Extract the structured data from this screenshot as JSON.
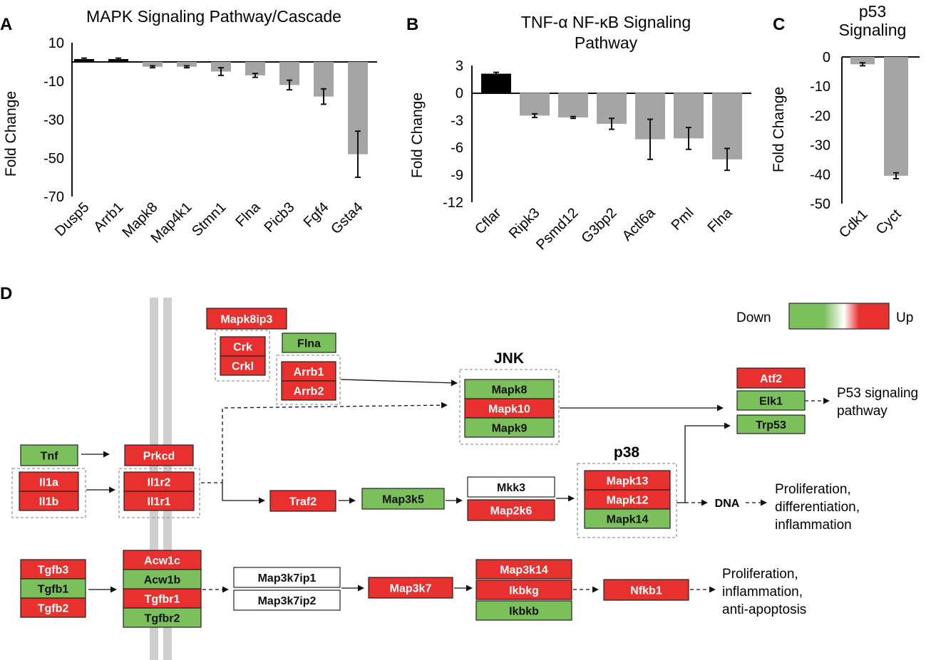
{
  "panels": {
    "a": "A",
    "b": "B",
    "c": "C",
    "d": "D"
  },
  "colors": {
    "up": "#e8302e",
    "down": "#7cc05c",
    "neutral": "#ffffff",
    "bar_gray": "#a5a5a5",
    "bar_black": "#000000",
    "shaded_band": "#cfcfcf"
  },
  "chart_data": [
    {
      "type": "bar",
      "title": "MAPK Signaling Pathway/Cascade",
      "xlabel": "",
      "ylabel": "Fold Change",
      "ylim": [
        -70,
        10
      ],
      "yticks": [
        "10",
        "-10",
        "-30",
        "-50",
        "-70"
      ],
      "categories": [
        "Dusp5",
        "Arrb1",
        "Mapk8",
        "Map4k1",
        "Stmn1",
        "Flna",
        "Picb3",
        "Fgf4",
        "Gsta4"
      ],
      "values": [
        1.5,
        1.5,
        -2.5,
        -2.5,
        -5,
        -7,
        -12,
        -18,
        -48
      ],
      "errors": [
        0.5,
        0.5,
        0.5,
        0.5,
        2,
        1,
        2.5,
        4,
        12
      ],
      "bar_colors": [
        "black",
        "black",
        "gray",
        "gray",
        "gray",
        "gray",
        "gray",
        "gray",
        "gray"
      ]
    },
    {
      "type": "bar",
      "title": "TNF-α NF-κB Signaling Pathway",
      "title_lines": [
        "TNF-α NF-κB Signaling",
        "Pathway"
      ],
      "xlabel": "",
      "ylabel": "Fold Change",
      "ylim": [
        -12,
        3
      ],
      "yticks": [
        "3",
        "0",
        "-3",
        "-6",
        "-9",
        "-12"
      ],
      "categories": [
        "Cflar",
        "Ripk3",
        "Psmd12",
        "G3bp2",
        "Actl6a",
        "Pml",
        "Flna"
      ],
      "values": [
        2.1,
        -2.5,
        -2.7,
        -3.4,
        -5.1,
        -5.0,
        -7.3
      ],
      "errors": [
        0.15,
        0.2,
        0.1,
        0.6,
        2.2,
        1.2,
        1.2
      ],
      "bar_colors": [
        "black",
        "gray",
        "gray",
        "gray",
        "gray",
        "gray",
        "gray"
      ]
    },
    {
      "type": "bar",
      "title": "p53 Signaling",
      "title_lines": [
        "p53",
        "Signaling"
      ],
      "xlabel": "",
      "ylabel": "Fold Change",
      "ylim": [
        -50,
        0
      ],
      "yticks": [
        "0",
        "-10",
        "-20",
        "-30",
        "-40",
        "-50"
      ],
      "categories": [
        "Cdk1",
        "Cyct"
      ],
      "values": [
        -2.5,
        -40.5
      ],
      "errors": [
        0.5,
        1
      ],
      "bar_colors": [
        "gray",
        "gray"
      ]
    }
  ],
  "pathway": {
    "legend": {
      "down": "Down",
      "up": "Up"
    },
    "labels": {
      "jnk": "JNK",
      "p38": "p38",
      "dna": "DNA",
      "p53_1": "P53 signaling",
      "p53_2": "pathway",
      "pro1_1": "Proliferation,",
      "pro1_2": "differentiation,",
      "pro1_3": "inflammation",
      "pro2_1": "Proliferation,",
      "pro2_2": "inflammation,",
      "pro2_3": "anti-apoptosis"
    },
    "genes": [
      {
        "id": "mapk8ip3",
        "label": "Mapk8ip3",
        "status": "up"
      },
      {
        "id": "crk",
        "label": "Crk",
        "status": "up"
      },
      {
        "id": "crkl",
        "label": "Crkl",
        "status": "up"
      },
      {
        "id": "flna",
        "label": "Flna",
        "status": "down"
      },
      {
        "id": "arrb1",
        "label": "Arrb1",
        "status": "up"
      },
      {
        "id": "arrb2",
        "label": "Arrb2",
        "status": "up"
      },
      {
        "id": "mapk8",
        "label": "Mapk8",
        "status": "down"
      },
      {
        "id": "mapk10",
        "label": "Mapk10",
        "status": "up"
      },
      {
        "id": "mapk9",
        "label": "Mapk9",
        "status": "down"
      },
      {
        "id": "atf2",
        "label": "Atf2",
        "status": "up"
      },
      {
        "id": "elk1",
        "label": "Elk1",
        "status": "down"
      },
      {
        "id": "trp53",
        "label": "Trp53",
        "status": "down"
      },
      {
        "id": "tnf",
        "label": "Tnf",
        "status": "down"
      },
      {
        "id": "il1a",
        "label": "Il1a",
        "status": "up"
      },
      {
        "id": "il1b",
        "label": "Il1b",
        "status": "up"
      },
      {
        "id": "prkcd",
        "label": "Prkcd",
        "status": "up"
      },
      {
        "id": "il1r2",
        "label": "Il1r2",
        "status": "up"
      },
      {
        "id": "il1r1",
        "label": "Il1r1",
        "status": "up"
      },
      {
        "id": "traf2",
        "label": "Traf2",
        "status": "up"
      },
      {
        "id": "map3k5",
        "label": "Map3k5",
        "status": "down"
      },
      {
        "id": "mkk3",
        "label": "Mkk3",
        "status": "neutral"
      },
      {
        "id": "map2k6",
        "label": "Map2k6",
        "status": "up"
      },
      {
        "id": "mapk13",
        "label": "Mapk13",
        "status": "up"
      },
      {
        "id": "mapk12",
        "label": "Mapk12",
        "status": "up"
      },
      {
        "id": "mapk14",
        "label": "Mapk14",
        "status": "down"
      },
      {
        "id": "tgfb3",
        "label": "Tgfb3",
        "status": "up"
      },
      {
        "id": "tgfb1",
        "label": "Tgfb1",
        "status": "down"
      },
      {
        "id": "tgfb2",
        "label": "Tgfb2",
        "status": "up"
      },
      {
        "id": "acw1c",
        "label": "Acw1c",
        "status": "up"
      },
      {
        "id": "acw1b",
        "label": "Acw1b",
        "status": "down"
      },
      {
        "id": "tgfbr1",
        "label": "Tgfbr1",
        "status": "up"
      },
      {
        "id": "tgfbr2",
        "label": "Tgfbr2",
        "status": "down"
      },
      {
        "id": "map3k7ip1",
        "label": "Map3k7ip1",
        "status": "neutral"
      },
      {
        "id": "map3k7ip2",
        "label": "Map3k7ip2",
        "status": "neutral"
      },
      {
        "id": "map3k7",
        "label": "Map3k7",
        "status": "up"
      },
      {
        "id": "map3k14",
        "label": "Map3k14",
        "status": "up"
      },
      {
        "id": "ikbkg",
        "label": "Ikbkg",
        "status": "up"
      },
      {
        "id": "ikbkb",
        "label": "Ikbkb",
        "status": "down"
      },
      {
        "id": "nfkb1",
        "label": "Nfkb1",
        "status": "up"
      }
    ]
  }
}
